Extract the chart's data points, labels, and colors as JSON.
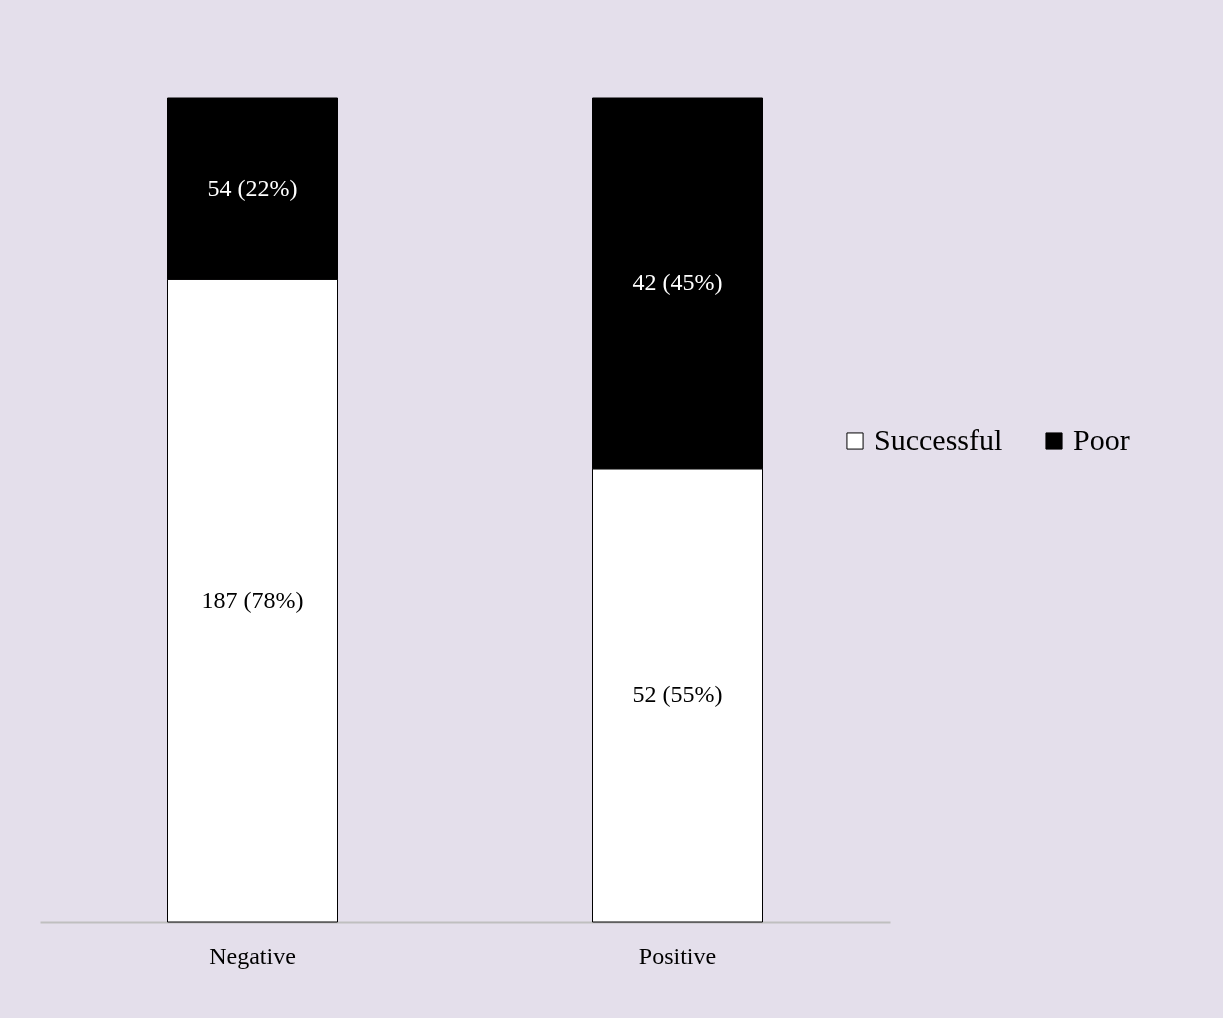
{
  "chart_data": {
    "type": "bar",
    "categories": [
      "Negative",
      "Positive"
    ],
    "stacked": true,
    "legend": "right",
    "ylim": [
      0,
      100
    ],
    "tick_labels": "x",
    "series": [
      {
        "name": "Successful",
        "color": "#ffffff",
        "values": [
          78,
          55
        ],
        "value_labels": [
          "187 (78%)",
          "52 (55%)"
        ]
      },
      {
        "name": "Poor",
        "color": "#000000",
        "values": [
          22,
          45
        ],
        "value_labels": [
          "54 (22%)",
          "42 (45%)"
        ]
      }
    ]
  }
}
